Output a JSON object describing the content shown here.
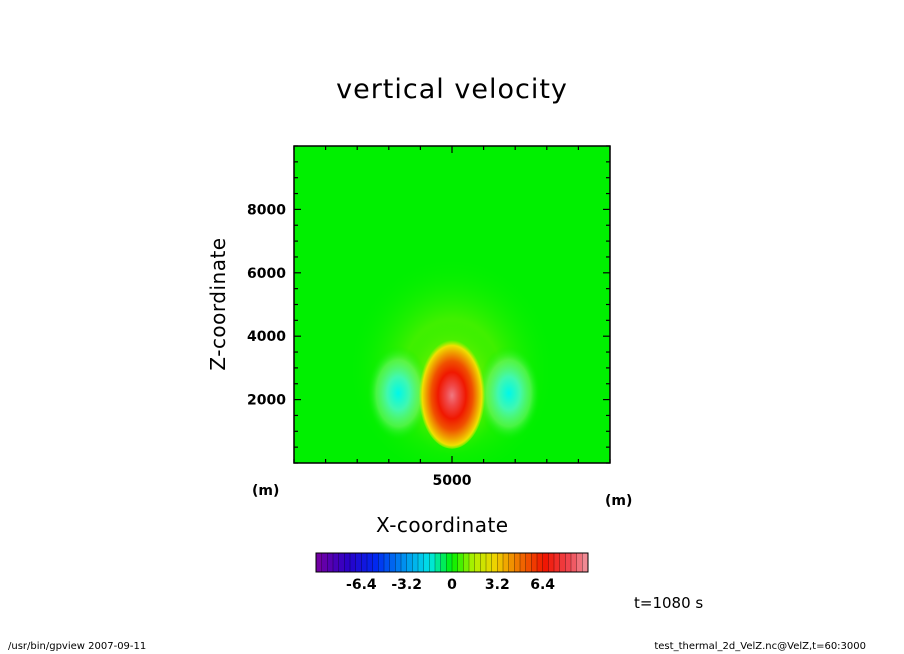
{
  "chart_data": {
    "type": "heatmap",
    "title": "vertical velocity",
    "xlabel": "X-coordinate",
    "ylabel": "Z-coordinate",
    "x_unit": "(m)",
    "y_unit": "(m)",
    "xlim": [
      0,
      10000
    ],
    "ylim": [
      0,
      10000
    ],
    "x_tick_labels": [
      5000
    ],
    "y_tick_labels": [
      2000,
      4000,
      6000,
      8000
    ],
    "field": {
      "description_of_max": "positive updraft core",
      "max_center": [
        5000,
        2200
      ],
      "max_value": 8.0,
      "min_centers": [
        [
          3300,
          2200
        ],
        [
          6800,
          2200
        ]
      ],
      "min_value": -4.0
    },
    "colorbar": {
      "range": [
        -9.6,
        9.6
      ],
      "tick_labels": [
        "-6.4",
        "-3.2",
        "0",
        "3.2",
        "6.4"
      ],
      "tick_values": [
        -6.4,
        -3.2,
        0,
        3.2,
        6.4
      ]
    },
    "time_label": "t=1080 s",
    "grid": false,
    "legend": "colorbar below plot"
  },
  "footer": {
    "left": "/usr/bin/gpview   2007-09-11",
    "right": "test_thermal_2d_VelZ.nc@VelZ,t=60:3000"
  }
}
